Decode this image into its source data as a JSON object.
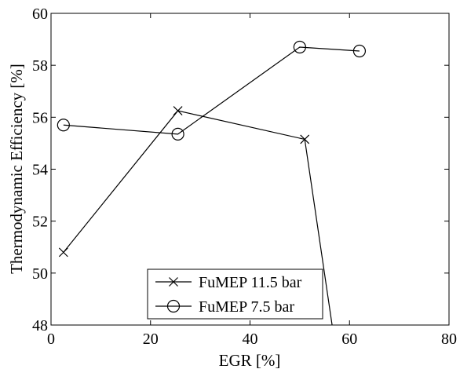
{
  "chart_data": {
    "type": "line",
    "title": "",
    "xlabel": "EGR [%]",
    "ylabel": "Thermodynamic Efficiency [%]",
    "xlim": [
      0,
      80
    ],
    "ylim": [
      48,
      60
    ],
    "xticks": [
      0,
      20,
      40,
      60,
      80
    ],
    "yticks": [
      48,
      50,
      52,
      54,
      56,
      58,
      60
    ],
    "grid": false,
    "legend_position": "bottom-center",
    "series": [
      {
        "name": "FuMEP 11.5 bar",
        "marker": "x",
        "x": [
          2.5,
          25.5,
          51,
          56.5
        ],
        "y": [
          50.8,
          56.25,
          55.15,
          48
        ]
      },
      {
        "name": "FuMEP 7.5 bar",
        "marker": "o",
        "x": [
          2.5,
          25.5,
          50,
          62
        ],
        "y": [
          55.7,
          55.35,
          58.7,
          58.55
        ]
      }
    ]
  },
  "colors": {
    "line": "#000000",
    "background": "#ffffff"
  }
}
